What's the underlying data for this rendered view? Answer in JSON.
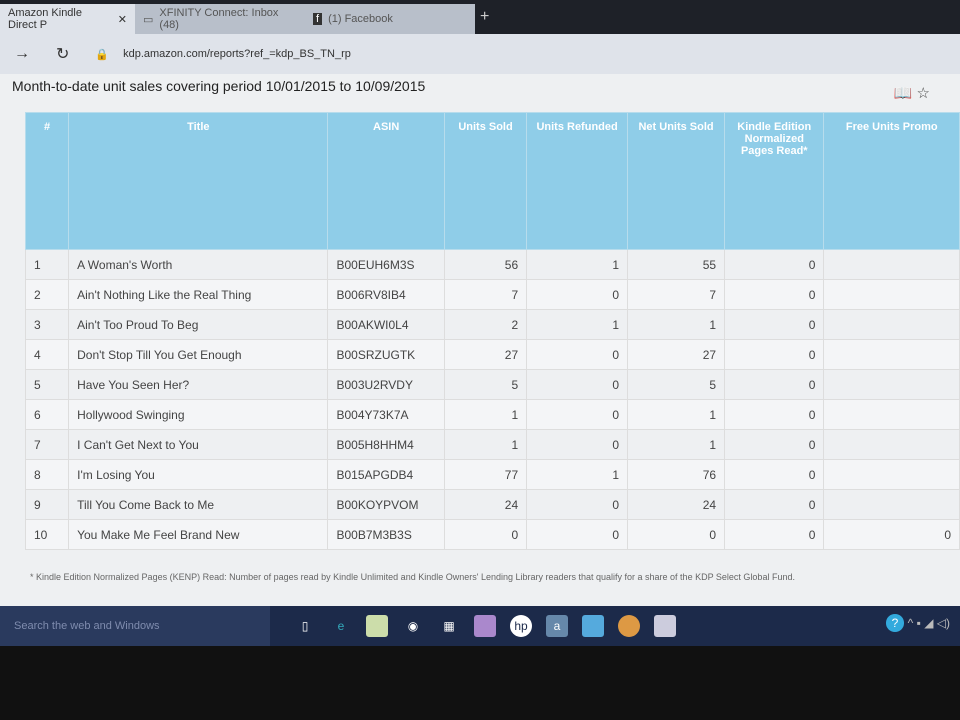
{
  "browser": {
    "tabs": [
      {
        "label": "Amazon Kindle Direct P",
        "icon": "close-icon"
      },
      {
        "label": "XFINITY Connect: Inbox (48)",
        "icon": "window-icon"
      },
      {
        "label": "(1) Facebook",
        "icon": "facebook-icon"
      }
    ],
    "url": "kdp.amazon.com/reports?ref_=kdp_BS_TN_rp"
  },
  "page": {
    "title": "Month-to-date unit sales covering period 10/01/2015 to 10/09/2015",
    "columns": [
      "#",
      "Title",
      "ASIN",
      "Units Sold",
      "Units Refunded",
      "Net Units Sold",
      "Kindle Edition Normalized Pages Read*",
      "Free Units Promo"
    ],
    "rows": [
      [
        "1",
        "A Woman's Worth",
        "B00EUH6M3S",
        "56",
        "1",
        "55",
        "0",
        ""
      ],
      [
        "2",
        "Ain't Nothing Like the Real Thing",
        "B006RV8IB4",
        "7",
        "0",
        "7",
        "0",
        ""
      ],
      [
        "3",
        "Ain't Too Proud To Beg",
        "B00AKWI0L4",
        "2",
        "1",
        "1",
        "0",
        ""
      ],
      [
        "4",
        "Don't Stop Till You Get Enough",
        "B00SRZUGTK",
        "27",
        "0",
        "27",
        "0",
        ""
      ],
      [
        "5",
        "Have You Seen Her?",
        "B003U2RVDY",
        "5",
        "0",
        "5",
        "0",
        ""
      ],
      [
        "6",
        "Hollywood Swinging",
        "B004Y73K7A",
        "1",
        "0",
        "1",
        "0",
        ""
      ],
      [
        "7",
        "I Can't Get Next to You",
        "B005H8HHM4",
        "1",
        "0",
        "1",
        "0",
        ""
      ],
      [
        "8",
        "I'm Losing You",
        "B015APGDB4",
        "77",
        "1",
        "76",
        "0",
        ""
      ],
      [
        "9",
        "Till You Come Back to Me",
        "B00KOYPVOM",
        "24",
        "0",
        "24",
        "0",
        ""
      ],
      [
        "10",
        "You Make Me Feel Brand New",
        "B00B7M3B3S",
        "0",
        "0",
        "0",
        "0",
        "0"
      ]
    ],
    "footnote": "* Kindle Edition Normalized Pages (KENP) Read: Number of pages read by Kindle Unlimited and Kindle Owners' Lending Library readers that qualify for a share of the KDP Select Global Fund."
  },
  "taskbar": {
    "search_placeholder": "Search the web and Windows"
  }
}
